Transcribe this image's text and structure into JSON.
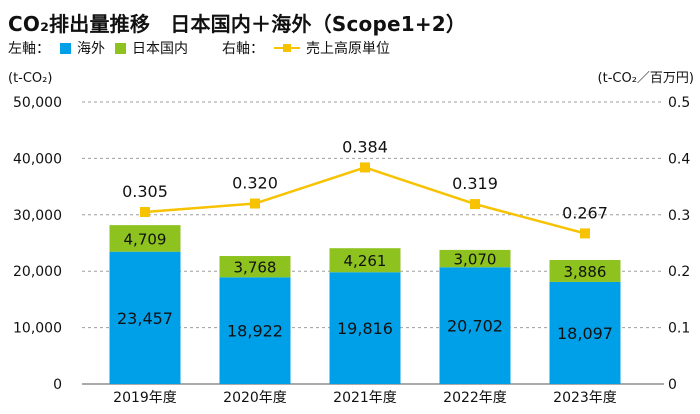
{
  "title": "CO₂排出量推移　日本国内＋海外（Scope1+2）",
  "legend": {
    "left_axis_label": "左軸：",
    "overseas": "海外",
    "domestic": "日本国内",
    "right_axis_label": "右軸：",
    "intensity": "売上高原単位"
  },
  "colors": {
    "overseas": "#00A0E9",
    "domestic": "#8DC21F",
    "intensity": "#F7C200",
    "grid": "#9E9E9E",
    "text": "#111111"
  },
  "chart_data": {
    "type": "bar",
    "stacked": true,
    "categories": [
      "2019年度",
      "2020年度",
      "2021年度",
      "2022年度",
      "2023年度"
    ],
    "series": [
      {
        "name": "海外",
        "axis": "left",
        "values": [
          23457,
          18922,
          19816,
          20702,
          18097
        ]
      },
      {
        "name": "日本国内",
        "axis": "left",
        "values": [
          4709,
          3768,
          4261,
          3070,
          3886
        ]
      },
      {
        "name": "売上高原単位",
        "type": "line",
        "axis": "right",
        "values": [
          0.305,
          0.32,
          0.384,
          0.319,
          0.267
        ]
      }
    ],
    "data_labels": {
      "overseas": [
        "23,457",
        "18,922",
        "19,816",
        "20,702",
        "18,097"
      ],
      "domestic": [
        "4,709",
        "3,768",
        "4,261",
        "3,070",
        "3,886"
      ],
      "intensity": [
        "0.305",
        "0.320",
        "0.384",
        "0.319",
        "0.267"
      ]
    },
    "left_axis": {
      "unit": "(t-CO₂)",
      "ylim": [
        0,
        50000
      ],
      "ticks": [
        0,
        10000,
        20000,
        30000,
        40000,
        50000
      ],
      "tick_labels": [
        "0",
        "10,000",
        "20,000",
        "30,000",
        "40,000",
        "50,000"
      ]
    },
    "right_axis": {
      "unit": "(t-CO₂／百万円)",
      "ylim": [
        0,
        0.5
      ],
      "ticks": [
        0,
        0.1,
        0.2,
        0.3,
        0.4,
        0.5
      ],
      "tick_labels": [
        "0",
        "0.1",
        "0.2",
        "0.3",
        "0.4",
        "0.5"
      ]
    },
    "grid": "dashed horizontal",
    "legend_position": "top-left"
  }
}
